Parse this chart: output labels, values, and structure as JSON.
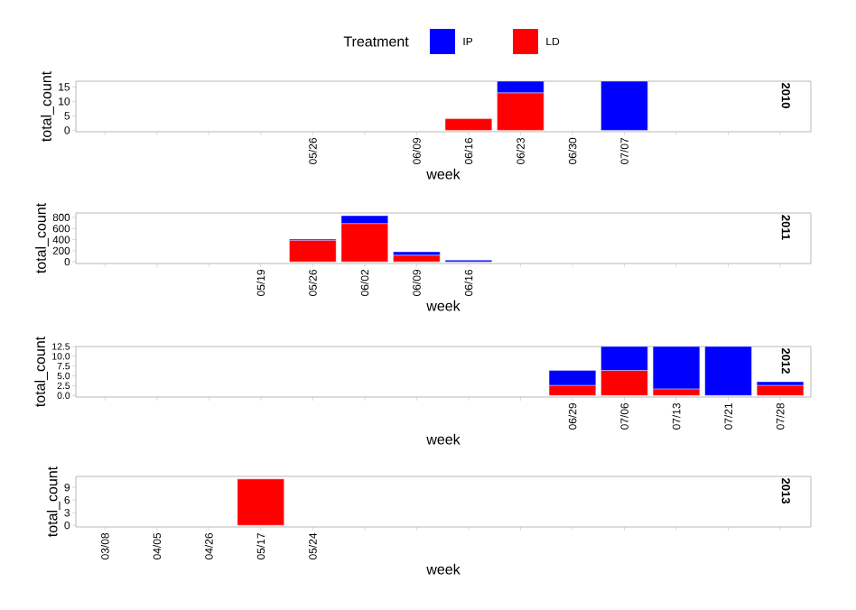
{
  "chart_data": [
    {
      "type": "bar",
      "title": "2010",
      "xlabel": "week",
      "ylabel": "total_count",
      "legend_title": "Treatment",
      "legend": "top",
      "stacked": true,
      "categories": [
        null,
        null,
        null,
        null,
        "05/26",
        null,
        "06/09",
        "06/16",
        "06/23",
        "06/30",
        "07/07",
        null,
        null,
        null
      ],
      "series": [
        {
          "name": "LD",
          "color": "#ff0000",
          "values": [
            null,
            null,
            null,
            null,
            null,
            null,
            null,
            4,
            13,
            null,
            null,
            null,
            null,
            null
          ]
        },
        {
          "name": "IP",
          "color": "#0000ff",
          "values": [
            null,
            null,
            null,
            null,
            null,
            null,
            null,
            null,
            4,
            null,
            17,
            null,
            null,
            null
          ]
        }
      ],
      "ylim": [
        -0.5,
        17
      ],
      "yticks": [
        0,
        5,
        10,
        15
      ]
    },
    {
      "type": "bar",
      "title": "2011",
      "xlabel": "week",
      "ylabel": "total_count",
      "stacked": true,
      "categories": [
        null,
        null,
        null,
        "05/19",
        "05/26",
        "06/02",
        "06/09",
        "06/16",
        null,
        null,
        null,
        null,
        null,
        null
      ],
      "series": [
        {
          "color": "#ff0000",
          "values": [
            null,
            null,
            null,
            null,
            390,
            690,
            120,
            null,
            null,
            null,
            null,
            null,
            null,
            null
          ]
        },
        {
          "color": "#0000ff",
          "values": [
            null,
            null,
            null,
            null,
            20,
            140,
            60,
            30,
            null,
            null,
            null,
            null,
            null,
            null
          ]
        }
      ],
      "ylim": [
        -30,
        880
      ],
      "yticks": [
        0,
        200,
        400,
        600,
        800
      ]
    },
    {
      "type": "bar",
      "title": "2012",
      "xlabel": "week",
      "ylabel": "total_count",
      "stacked": true,
      "categories": [
        null,
        null,
        null,
        null,
        null,
        null,
        null,
        null,
        null,
        "06/29",
        "07/06",
        "07/13",
        "07/21",
        "07/28"
      ],
      "series": [
        {
          "color": "#ff0000",
          "values": [
            null,
            null,
            null,
            null,
            null,
            null,
            null,
            null,
            null,
            2.6,
            6.4,
            1.7,
            null,
            2.6
          ]
        },
        {
          "color": "#0000ff",
          "values": [
            null,
            null,
            null,
            null,
            null,
            null,
            null,
            null,
            null,
            3.8,
            6.1,
            10.8,
            12.5,
            0.9
          ]
        }
      ],
      "ylim": [
        -0.4,
        12.5
      ],
      "yticks": [
        {
          "value": 0,
          "label": "0.0"
        },
        2.5,
        {
          "value": 5,
          "label": "5.0"
        },
        7.5,
        {
          "value": 10,
          "label": "10.0"
        },
        12.5
      ]
    },
    {
      "type": "bar",
      "title": "2013",
      "xlabel": "week",
      "ylabel": "total_count",
      "stacked": true,
      "categories": [
        "03/08",
        "04/05",
        "04/26",
        "05/17",
        "05/24",
        null,
        null,
        null,
        null,
        null,
        null,
        null,
        null,
        null
      ],
      "series": [
        {
          "color": "#ff0000",
          "values": [
            null,
            null,
            null,
            11,
            null,
            null,
            null,
            null,
            null,
            null,
            null,
            null,
            null,
            null
          ]
        }
      ],
      "ylim": [
        -0.4,
        11.6
      ],
      "yticks": [
        0,
        3,
        6,
        9
      ]
    }
  ]
}
